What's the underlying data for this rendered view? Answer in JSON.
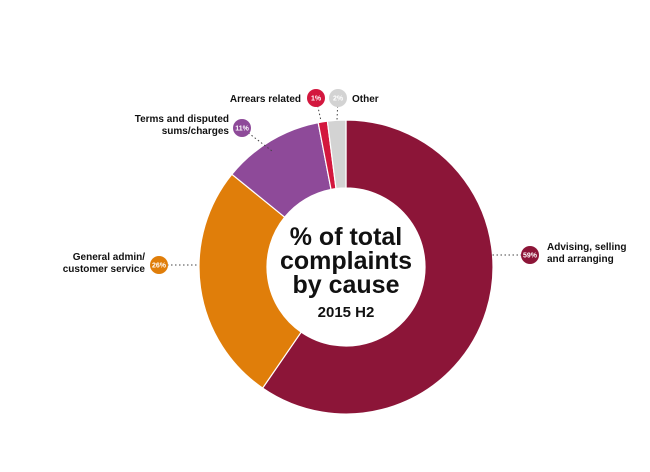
{
  "chart_data": {
    "type": "pie",
    "title_lines": [
      "% of total",
      "complaints",
      "by cause"
    ],
    "subtitle": "2015 H2",
    "slices": [
      {
        "label": "Advising, selling and arranging",
        "value": 59,
        "value_label": "59%",
        "color": "#8c1538"
      },
      {
        "label": "General admin/ customer service",
        "value": 26,
        "value_label": "26%",
        "color": "#e07e0a"
      },
      {
        "label": "Terms and disputed sums/charges",
        "value": 11,
        "value_label": "11%",
        "color": "#8e4a99"
      },
      {
        "label": "Arrears related",
        "value": 1,
        "value_label": "1%",
        "color": "#d3173e"
      },
      {
        "label": "Other",
        "value": 2,
        "value_label": "2%",
        "color": "#d3d3d3"
      }
    ]
  }
}
